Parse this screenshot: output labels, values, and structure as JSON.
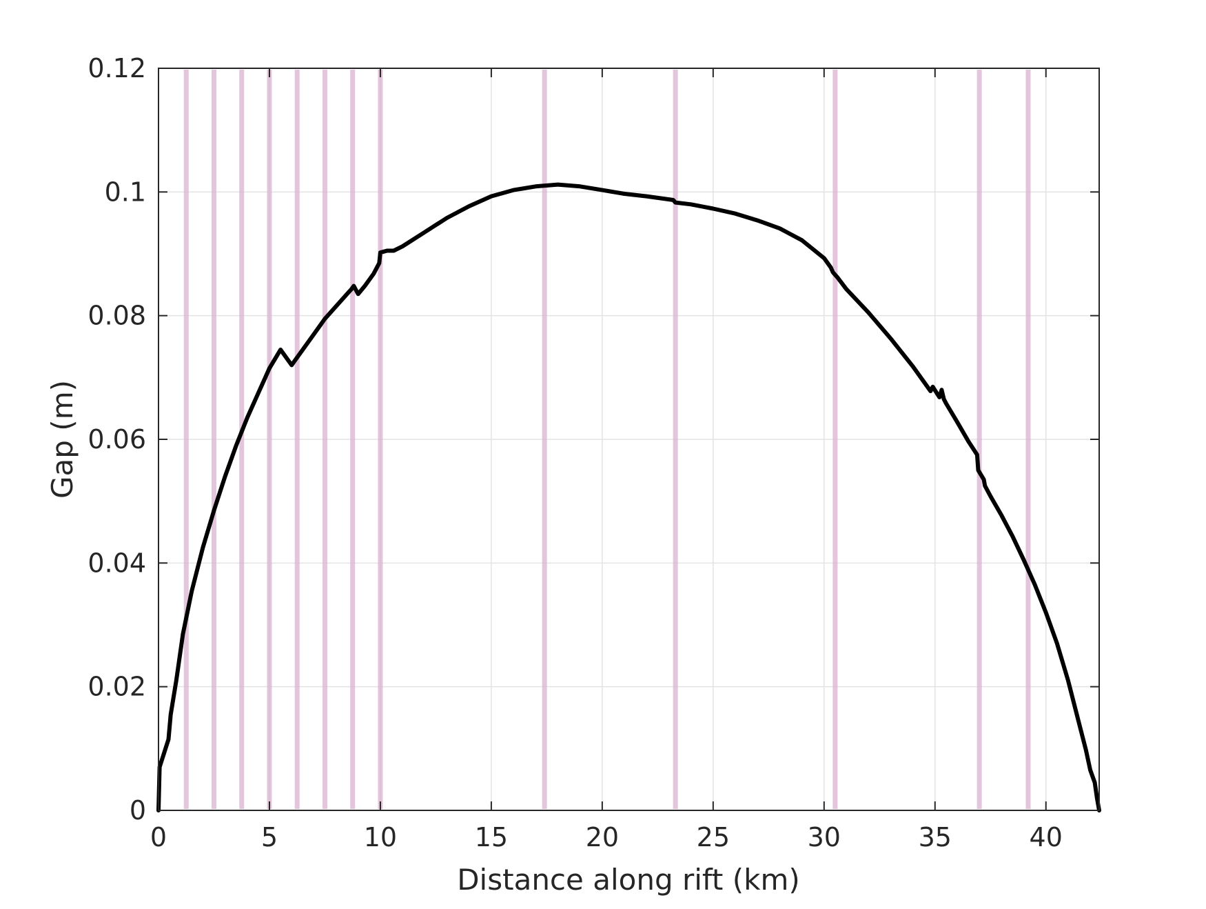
{
  "chart_data": {
    "type": "line",
    "xlabel": "Distance along rift (km)",
    "ylabel": "Gap (m)",
    "xlim": [
      0,
      42.4
    ],
    "ylim": [
      0,
      0.12
    ],
    "xticks": [
      0,
      5,
      10,
      15,
      20,
      25,
      30,
      35,
      40
    ],
    "xtick_labels": [
      "0",
      "5",
      "10",
      "15",
      "20",
      "25",
      "30",
      "35",
      "40"
    ],
    "yticks": [
      0,
      0.02,
      0.04,
      0.06,
      0.08,
      0.1,
      0.12
    ],
    "ytick_labels": [
      "0",
      "0.02",
      "0.04",
      "0.06",
      "0.08",
      "0.1",
      "0.12"
    ],
    "grid": true,
    "line_color": "#000000",
    "marker_color": "#d9b3cf",
    "vertical_markers": [
      1.25,
      2.5,
      3.75,
      5.0,
      6.25,
      7.5,
      8.75,
      10.0,
      17.4,
      23.3,
      30.5,
      37.0,
      39.2
    ],
    "series": [
      {
        "x": [
          0,
          0.05,
          0.45,
          0.55,
          0.8,
          1.1,
          1.5,
          2.0,
          2.5,
          3.0,
          3.5,
          4.0,
          4.5,
          5.0,
          5.5,
          6.0,
          6.3,
          6.5,
          7.0,
          7.5,
          8.0,
          8.5,
          8.7,
          8.8,
          9.0,
          9.3,
          9.7,
          9.95,
          10.0,
          10.3,
          10.6,
          11.0,
          12.0,
          13.0,
          14.0,
          15.0,
          16.0,
          17.0,
          18.0,
          19.0,
          20.0,
          21.0,
          22.0,
          23.2,
          23.3,
          24.0,
          25.0,
          26.0,
          27.0,
          28.0,
          29.0,
          30.0,
          30.3,
          30.4,
          30.6,
          31.0,
          32.0,
          33.0,
          34.0,
          34.8,
          34.9,
          35.2,
          35.3,
          35.4,
          35.5,
          36.0,
          36.5,
          36.9,
          36.95,
          37.2,
          37.25,
          37.5,
          38.0,
          38.5,
          39.0,
          39.5,
          40.0,
          40.5,
          41.0,
          41.5,
          41.8,
          42.0,
          42.2,
          42.3,
          42.4
        ],
        "y": [
          0,
          0.007,
          0.0115,
          0.0155,
          0.021,
          0.0285,
          0.0355,
          0.0425,
          0.0485,
          0.054,
          0.059,
          0.0635,
          0.0675,
          0.0715,
          0.0745,
          0.072,
          0.0735,
          0.0745,
          0.077,
          0.0795,
          0.0815,
          0.0835,
          0.0843,
          0.0848,
          0.0835,
          0.0848,
          0.0868,
          0.0885,
          0.0902,
          0.0905,
          0.0905,
          0.0912,
          0.0935,
          0.0958,
          0.0977,
          0.0993,
          0.1003,
          0.1009,
          0.1012,
          0.1009,
          0.1003,
          0.0997,
          0.0993,
          0.0987,
          0.0983,
          0.098,
          0.0973,
          0.0965,
          0.0954,
          0.0941,
          0.0922,
          0.0893,
          0.0878,
          0.087,
          0.0862,
          0.0843,
          0.0805,
          0.0763,
          0.0718,
          0.0678,
          0.0685,
          0.0668,
          0.068,
          0.0665,
          0.0658,
          0.0628,
          0.0597,
          0.0575,
          0.055,
          0.0535,
          0.0525,
          0.0508,
          0.0477,
          0.0443,
          0.0405,
          0.0365,
          0.032,
          0.027,
          0.021,
          0.014,
          0.0098,
          0.0065,
          0.0045,
          0.002,
          0
        ]
      }
    ]
  }
}
